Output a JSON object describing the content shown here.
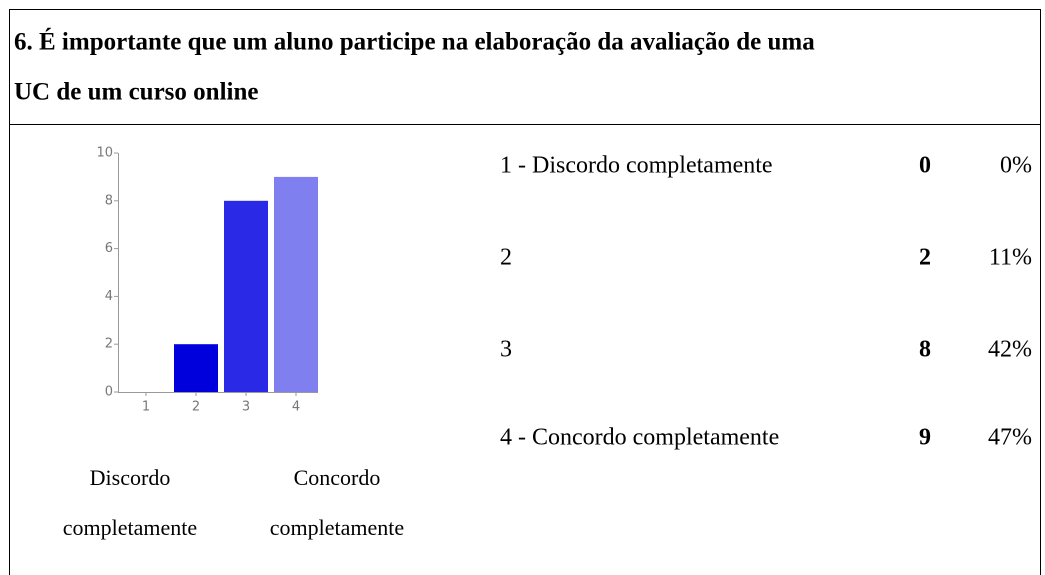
{
  "header": {
    "title_lines": [
      "6. É importante que um aluno participe na elaboração da avaliação de uma",
      "UC de um curso online"
    ]
  },
  "chart_data": {
    "type": "bar",
    "categories": [
      "1",
      "2",
      "3",
      "4"
    ],
    "values": [
      0,
      2,
      8,
      9
    ],
    "colors": [
      "#0000dd",
      "#0000dd",
      "#2a2ae6",
      "#7f7fef"
    ],
    "ylim": [
      0,
      10
    ],
    "yticks": [
      0,
      2,
      4,
      6,
      8,
      10
    ],
    "scale_labels": [
      [
        "Discordo",
        "completamente"
      ],
      [
        "Concordo",
        "completamente"
      ]
    ]
  },
  "table": {
    "rows": [
      {
        "label": "1 - Discordo completamente",
        "percent": "0%"
      },
      {
        "label": "2",
        "percent": "11%"
      },
      {
        "label": "3",
        "percent": "42%"
      },
      {
        "label": "4 - Concordo completamente",
        "percent": "47%"
      }
    ]
  }
}
